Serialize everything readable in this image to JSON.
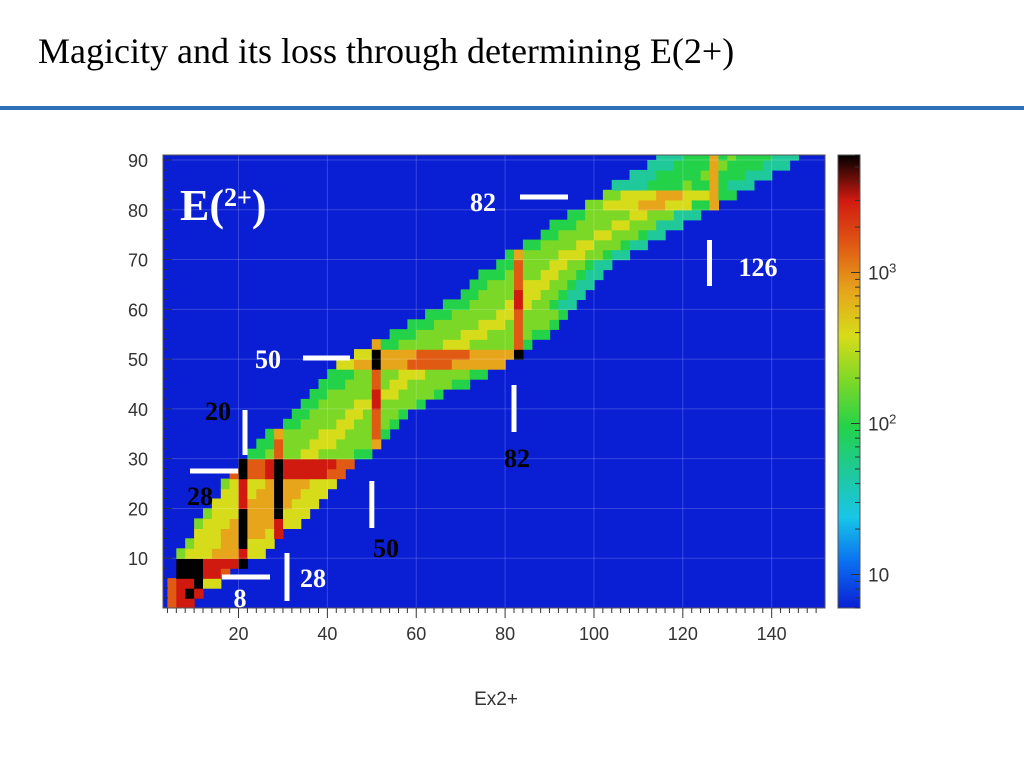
{
  "slide": {
    "title": "Magicity and its loss through determining E(2+)"
  },
  "colors": {
    "title_rule": "#2e6fb5",
    "plot_background": "#0a1fd4",
    "marker": "#ffffff",
    "colormap": [
      "#0a1fd4",
      "#0a6ef0",
      "#18c6e8",
      "#1fc99a",
      "#24d24a",
      "#7cd827",
      "#d6dc1a",
      "#e6a51b",
      "#e05a14",
      "#d01a10",
      "#000000"
    ]
  },
  "chart_data": {
    "type": "heatmap",
    "title": "E(2+)",
    "xlabel": "Ex2+",
    "ylabel": "",
    "xlim": [
      3,
      152
    ],
    "ylim": [
      0,
      91
    ],
    "x_ticks": [
      20,
      40,
      60,
      80,
      100,
      120,
      140
    ],
    "y_ticks": [
      10,
      20,
      30,
      40,
      50,
      60,
      70,
      80,
      90
    ],
    "colorbar": {
      "scale": "log",
      "range": [
        6,
        6000
      ],
      "labels": [
        {
          "value": 10,
          "base": "10",
          "exp": ""
        },
        {
          "value": 100,
          "base": "10",
          "exp": "2"
        },
        {
          "value": 1000,
          "base": "10",
          "exp": "3"
        }
      ]
    },
    "band": [
      {
        "y": 2,
        "x_min": 5,
        "x_max": 9
      },
      {
        "y": 10,
        "x_min": 7,
        "x_max": 23
      },
      {
        "y": 20,
        "x_min": 14,
        "x_max": 36
      },
      {
        "y": 30,
        "x_min": 21,
        "x_max": 47
      },
      {
        "y": 40,
        "x_min": 34,
        "x_max": 59
      },
      {
        "y": 50,
        "x_min": 45,
        "x_max": 82
      },
      {
        "y": 60,
        "x_min": 66,
        "x_max": 95
      },
      {
        "y": 70,
        "x_min": 80,
        "x_max": 104
      },
      {
        "y": 80,
        "x_min": 97,
        "x_max": 124
      },
      {
        "y": 90,
        "x_min": 114,
        "x_max": 145
      }
    ],
    "magic_markers": [
      {
        "label": "8",
        "orientation": "horizontal",
        "value": 8
      },
      {
        "label": "20",
        "orientation": "vertical",
        "value": 20
      },
      {
        "label": "28",
        "orientation": "vertical",
        "value": 28
      },
      {
        "label": "28",
        "orientation": "horizontal",
        "value": 28
      },
      {
        "label": "50",
        "orientation": "vertical",
        "value": 50
      },
      {
        "label": "50",
        "orientation": "horizontal",
        "value": 50
      },
      {
        "label": "82",
        "orientation": "vertical",
        "value": 82
      },
      {
        "label": "82",
        "orientation": "horizontal",
        "value": 82
      },
      {
        "label": "126",
        "orientation": "vertical",
        "value": 126
      }
    ]
  }
}
